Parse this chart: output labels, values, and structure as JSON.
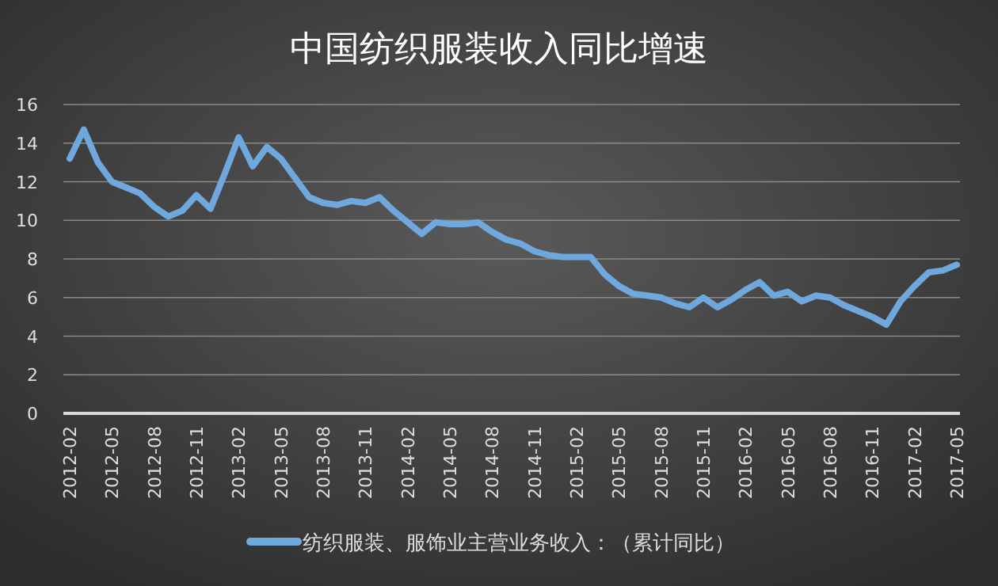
{
  "chart_data": {
    "type": "line",
    "title": "中国纺织服装收入同比增速",
    "categories": [
      "2012-02",
      null,
      null,
      "2012-05",
      null,
      null,
      "2012-08",
      null,
      null,
      "2012-11",
      null,
      null,
      "2013-02",
      null,
      null,
      "2013-05",
      null,
      null,
      "2013-08",
      null,
      null,
      "2013-11",
      null,
      null,
      "2014-02",
      null,
      null,
      "2014-05",
      null,
      null,
      "2014-08",
      null,
      null,
      "2014-11",
      null,
      null,
      "2015-02",
      null,
      null,
      "2015-05",
      null,
      null,
      "2015-08",
      null,
      null,
      "2015-11",
      null,
      null,
      "2016-02",
      null,
      null,
      "2016-05",
      null,
      null,
      "2016-08",
      null,
      null,
      "2016-11",
      null,
      null,
      "2017-02",
      null,
      null,
      "2017-05"
    ],
    "series": [
      {
        "name": "纺织服装、服饰业主营业务收入：（累计同比）",
        "color": "#6fa8dc",
        "values": [
          13.2,
          14.7,
          13.0,
          12.0,
          11.7,
          11.4,
          10.7,
          10.2,
          10.5,
          11.3,
          10.6,
          12.4,
          14.3,
          12.8,
          13.8,
          13.2,
          12.2,
          11.2,
          10.9,
          10.8,
          11.0,
          10.9,
          11.2,
          10.5,
          9.9,
          9.3,
          9.9,
          9.8,
          9.8,
          9.9,
          9.4,
          9.0,
          8.8,
          8.4,
          8.2,
          8.1,
          8.1,
          8.1,
          7.2,
          6.6,
          6.2,
          6.1,
          6.0,
          5.7,
          5.5,
          6.0,
          5.5,
          5.9,
          6.4,
          6.8,
          6.1,
          6.3,
          5.8,
          6.1,
          6.0,
          5.6,
          5.3,
          5.0,
          4.6,
          5.8,
          6.6,
          7.3,
          7.4,
          7.7
        ]
      }
    ],
    "ylim": [
      0,
      16
    ],
    "yticks": [
      0,
      2,
      4,
      6,
      8,
      10,
      12,
      14,
      16
    ],
    "grid": "y",
    "legend": "bottom",
    "marker": "none",
    "line_style": "solid"
  }
}
